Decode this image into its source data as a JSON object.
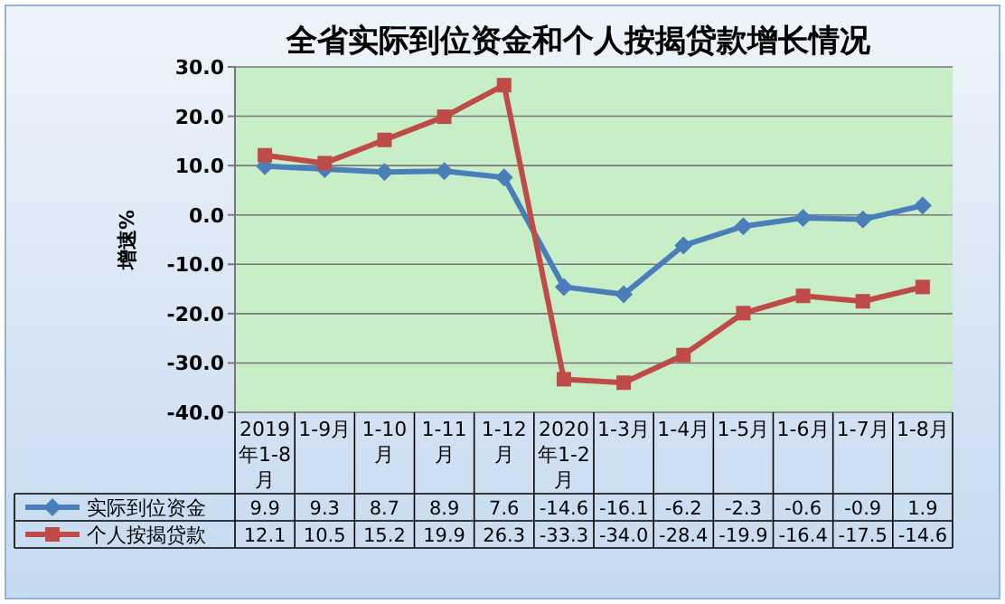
{
  "chart_data": {
    "type": "line",
    "title": "全省实际到位资金和个人按揭贷款增长情况",
    "ylabel": "增速%",
    "categories": [
      "2019年1-8月",
      "1-9月",
      "1-10月",
      "1-11月",
      "1-12月",
      "2020年1-2月",
      "1-3月",
      "1-4月",
      "1-5月",
      "1-6月",
      "1-7月",
      "1-8月"
    ],
    "series": [
      {
        "name": "实际到位资金",
        "color": "#4a7ebb",
        "marker": "diamond",
        "values": [
          9.9,
          9.3,
          8.7,
          8.9,
          7.6,
          -14.6,
          -16.1,
          -6.2,
          -2.3,
          -0.6,
          -0.9,
          1.9
        ],
        "value_labels": [
          "9.9",
          "9.3",
          "8.7",
          "8.9",
          "7.6",
          "-14.6",
          "-16.1",
          "-6.2",
          "-2.3",
          "-0.6",
          "-0.9",
          "1.9"
        ]
      },
      {
        "name": "个人按揭贷款",
        "color": "#be4b48",
        "marker": "square",
        "values": [
          12.1,
          10.5,
          15.2,
          19.9,
          26.3,
          -33.3,
          -34.0,
          -28.4,
          -19.9,
          -16.4,
          -17.5,
          -14.6
        ],
        "value_labels": [
          "12.1",
          "10.5",
          "15.2",
          "19.9",
          "26.3",
          "-33.3",
          "-34.0",
          "-28.4",
          "-19.9",
          "-16.4",
          "-17.5",
          "-14.6"
        ]
      }
    ],
    "ylim": [
      -40,
      30
    ],
    "yticks": [
      {
        "value": -40,
        "label": "-40.0"
      },
      {
        "value": -30,
        "label": "-30.0"
      },
      {
        "value": -20,
        "label": "-20.0"
      },
      {
        "value": -10,
        "label": "-10.0"
      },
      {
        "value": 0,
        "label": "0.0"
      },
      {
        "value": 10,
        "label": "10.0"
      },
      {
        "value": 20,
        "label": "20.0"
      },
      {
        "value": 30,
        "label": "30.0"
      }
    ],
    "grid": "y",
    "legend": "bottom"
  }
}
